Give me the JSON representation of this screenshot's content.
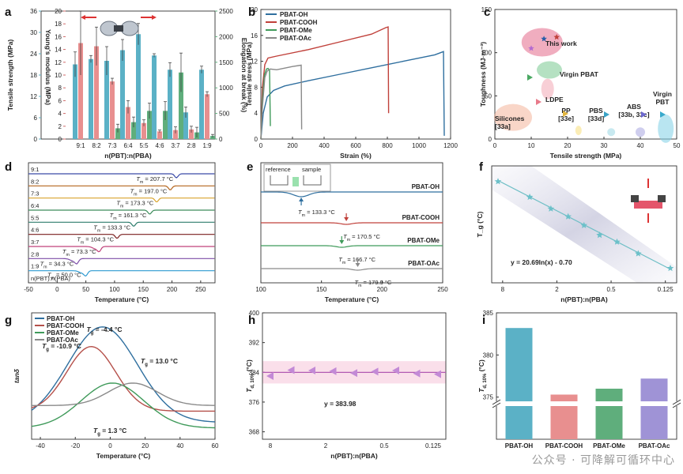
{
  "watermark": "公众号 · 可降解可循环中心",
  "panel_letters": [
    "a",
    "b",
    "c",
    "d",
    "e",
    "f",
    "g",
    "h",
    "i"
  ],
  "chart_data": [
    {
      "id": "a",
      "type": "bar",
      "xlabel": "n(PBT):n(PBA)",
      "categories": [
        "9:1",
        "8:2",
        "7:3",
        "6:4",
        "5:5",
        "4:6",
        "3:7",
        "2:8",
        "1:9"
      ],
      "ylabel_left": "Tensile strength (MPa)",
      "ylabel_mid": "Young's modulus (MPa)",
      "ylabel_right": "Elongation at break (%)",
      "ylim_left": [
        0,
        36
      ],
      "yticks_left": [
        0,
        6,
        12,
        18,
        24,
        30,
        36
      ],
      "ylim_mid": [
        0,
        20
      ],
      "yticks_mid": [
        0,
        2,
        4,
        6,
        8,
        10,
        12,
        14,
        16,
        18,
        20
      ],
      "ylim_right": [
        0,
        2500
      ],
      "yticks_right": [
        0,
        500,
        1000,
        1500,
        2000,
        2500
      ],
      "series": [
        {
          "name": "Tensile strength",
          "axis": "left",
          "color": "#5bb1c6",
          "values": [
            21,
            22.5,
            22,
            25,
            29.5,
            23.5,
            19.5,
            7.5,
            19.5
          ],
          "errors": [
            3.5,
            1,
            4,
            3,
            3,
            0.5,
            2,
            1.5,
            1
          ]
        },
        {
          "name": "Young's modulus",
          "axis": "mid",
          "color": "#e88f8f",
          "values": [
            15,
            14.5,
            9,
            5,
            2.5,
            1.2,
            1.4,
            1.5,
            7
          ],
          "errors": [
            5,
            3,
            0.5,
            1,
            0.5,
            0.2,
            0.5,
            0.5,
            0.4
          ]
        },
        {
          "name": "Elongation at break",
          "axis": "right",
          "color": "#5fae7c",
          "values": [
            0,
            0,
            210,
            330,
            550,
            550,
            1300,
            130,
            60
          ],
          "errors": [
            0,
            0,
            80,
            100,
            150,
            180,
            380,
            100,
            30
          ]
        }
      ]
    },
    {
      "id": "b",
      "type": "line",
      "xlabel": "Strain (%)",
      "ylabel": "Tensile stress (MPa)",
      "xlim": [
        0,
        1200
      ],
      "ylim": [
        0,
        20
      ],
      "xticks": [
        0,
        200,
        400,
        600,
        800,
        1000,
        1200
      ],
      "yticks": [
        0,
        4,
        8,
        12,
        16,
        20
      ],
      "legend": "top-left",
      "series": [
        {
          "name": "PBAT-OH",
          "color": "#2f6f9f",
          "x": [
            0,
            15,
            40,
            80,
            150,
            300,
            500,
            700,
            900,
            1100,
            1155,
            1160
          ],
          "y": [
            0,
            4,
            6.5,
            7.5,
            8.2,
            9,
            10,
            11,
            12,
            13,
            13.5,
            0.5
          ]
        },
        {
          "name": "PBAT-COOH",
          "color": "#c0403a",
          "x": [
            0,
            10,
            25,
            45,
            100,
            300,
            500,
            700,
            790,
            805,
            808
          ],
          "y": [
            0,
            8,
            11.5,
            12.5,
            12.8,
            13.8,
            15,
            16.2,
            17.2,
            17.3,
            4
          ]
        },
        {
          "name": "PBAT-OMe",
          "color": "#3f9a5a",
          "x": [
            0,
            10,
            22,
            35,
            45,
            55,
            60
          ],
          "y": [
            0,
            6,
            9.8,
            10.8,
            10.9,
            10.6,
            2
          ]
        },
        {
          "name": "PBAT-OAc",
          "color": "#8a8a8a",
          "x": [
            0,
            10,
            25,
            40,
            60,
            100,
            200,
            255,
            258
          ],
          "y": [
            0,
            5,
            9.5,
            10.5,
            10.8,
            10.7,
            11.2,
            11.4,
            1.5
          ]
        }
      ]
    },
    {
      "id": "c",
      "type": "scatter",
      "xlabel": "Tensile strength (MPa)",
      "ylabel": "Toughness (MJ·m⁻³)",
      "xlim": [
        0,
        50
      ],
      "ylim": [
        0,
        150
      ],
      "xticks": [
        0,
        10,
        20,
        30,
        40,
        50
      ],
      "yticks": [
        0,
        50,
        100,
        150
      ],
      "regions": [
        {
          "label": "This work",
          "x": 13,
          "y": 112,
          "color": "#e46a8b"
        },
        {
          "label": "Virgin PBAT",
          "x": 15,
          "y": 80,
          "color": "#79c98f"
        },
        {
          "label": "LDPE",
          "x": 14.5,
          "y": 58,
          "color": "#f3a7b4"
        },
        {
          "label": "Silicones [33a]",
          "x": 5,
          "y": 25,
          "color": "#f4b49a"
        },
        {
          "label": "PP [33e]",
          "x": 23,
          "y": 10,
          "color": "#f7df7a"
        },
        {
          "label": "PBS [33d]",
          "x": 32,
          "y": 8,
          "color": "#9ad7e4"
        },
        {
          "label": "ABS [33b, 33c]",
          "x": 40,
          "y": 8,
          "color": "#a7a5e0"
        },
        {
          "label": "Virgin PBT",
          "x": 47,
          "y": 12,
          "color": "#7fd0e6"
        }
      ],
      "points": [
        {
          "x": 10,
          "y": 105,
          "color": "#b36ad0"
        },
        {
          "x": 13.5,
          "y": 116,
          "color": "#2a5ea8"
        },
        {
          "x": 17,
          "y": 118,
          "color": "#c0403a"
        }
      ]
    },
    {
      "id": "d",
      "type": "line",
      "xlabel": "Temperature (°C)",
      "xlim": [
        -50,
        275
      ],
      "xticks": [
        -50,
        0,
        50,
        100,
        150,
        200,
        250
      ],
      "ylabel": "",
      "series": [
        {
          "name": "9:1",
          "color": "#3a4aa8",
          "label": "T_m = 207.7 °C",
          "tm": 207.7
        },
        {
          "name": "8:2",
          "color": "#b5651d",
          "label": "T_m = 197.0 °C",
          "tm": 197.0
        },
        {
          "name": "7:3",
          "color": "#d9a32b",
          "label": "T_m = 173.3 °C",
          "tm": 173.3
        },
        {
          "name": "6:4",
          "color": "#3c8c5a",
          "label": "T_m = 161.3 °C",
          "tm": 161.3
        },
        {
          "name": "5:5",
          "color": "#2e7d6d",
          "label": "T_m = 133.3 °C",
          "tm": 133.3
        },
        {
          "name": "4:6",
          "color": "#7a1f1f",
          "label": "T_m = 104.3 °C",
          "tm": 104.3
        },
        {
          "name": "3:7",
          "color": "#c0407a",
          "label": "T_m = 73.3 °C",
          "tm": 73.3
        },
        {
          "name": "2:8",
          "color": "#7d4fa8",
          "label": "T_m = 34.3 °C",
          "tm": 34.3
        },
        {
          "name": "1:9",
          "color": "#2d9ad1",
          "label": "T_m = 50.0 °C",
          "tm": 50.0
        }
      ],
      "legend_title": "n(PBT):n(PBA)"
    },
    {
      "id": "e",
      "type": "line",
      "xlabel": "Temperature (°C)",
      "xlim": [
        100,
        250
      ],
      "xticks": [
        100,
        150,
        200,
        250
      ],
      "inset_labels": [
        "reference",
        "sample"
      ],
      "series": [
        {
          "name": "PBAT-OH",
          "color": "#2f6f9f",
          "label": "T_m = 133.3 °C",
          "tm": 133.3
        },
        {
          "name": "PBAT-COOH",
          "color": "#c0403a",
          "label": "T_m = 170.5 °C",
          "tm": 170.5
        },
        {
          "name": "PBAT-OMe",
          "color": "#3f9a5a",
          "label": "T_m = 166.7 °C",
          "tm": 166.7
        },
        {
          "name": "PBAT-OAc",
          "color": "#8a8a8a",
          "label": "T_m = 179.9 °C",
          "tm": 179.9
        }
      ]
    },
    {
      "id": "f",
      "type": "scatter",
      "xlabel": "n(PBT):n(PBA)",
      "ylabel": "T_g (°C)",
      "x_scale": "log",
      "xticks": [
        "8",
        "2",
        "0.5",
        "0.125"
      ],
      "fit_equation": "y = 20.69ln(x) - 0.70",
      "x": [
        9,
        4,
        2.33,
        1.5,
        1,
        0.67,
        0.43,
        0.25,
        0.11
      ],
      "y": [
        44,
        28,
        16,
        8,
        -1,
        -11,
        -18,
        -30,
        -45
      ]
    },
    {
      "id": "g",
      "type": "line",
      "xlabel": "Temperature (°C)",
      "ylabel": "tanδ",
      "xlim": [
        -45,
        60
      ],
      "ylim": [
        0,
        0.45
      ],
      "xticks": [
        -40,
        -20,
        0,
        20,
        40,
        60
      ],
      "legend": "top-left",
      "series": [
        {
          "name": "PBAT-OH",
          "color": "#2f6f9f",
          "label": "T_g = -4.4 °C"
        },
        {
          "name": "PBAT-COOH",
          "color": "#b5504a",
          "label": "T_g = -10.9 °C"
        },
        {
          "name": "PBAT-OMe",
          "color": "#3f9a5a",
          "label": "T_g = 1.3 °C"
        },
        {
          "name": "PBAT-OAc",
          "color": "#8a8a8a",
          "label": "T_g = 13.0 °C"
        }
      ]
    },
    {
      "id": "h",
      "type": "scatter",
      "xlabel": "n(PBT):n(PBA)",
      "ylabel": "T_d, 10% (°C)",
      "ylim": [
        366,
        400
      ],
      "yticks": [
        368,
        376,
        384,
        392,
        400
      ],
      "xticks": [
        "8",
        "2",
        "0.5",
        "0.125"
      ],
      "fit_equation": "y = 383.98",
      "values": [
        383.0,
        384.6,
        384.5,
        384.3,
        383.8,
        384.2,
        384.5,
        383.7,
        383.5
      ]
    },
    {
      "id": "i",
      "type": "bar",
      "ylabel": "T_d, 10% (°C)",
      "categories": [
        "PBAT-OH",
        "PBAT-COOH",
        "PBAT-OMe",
        "PBAT-OAc"
      ],
      "values": [
        383.2,
        375.3,
        376.0,
        377.2
      ],
      "colors": [
        "#5bb1c6",
        "#e88f8f",
        "#5fae7c",
        "#9f93d6"
      ],
      "ylim": [
        370,
        385
      ],
      "yticks": [
        375,
        380,
        385
      ]
    }
  ]
}
